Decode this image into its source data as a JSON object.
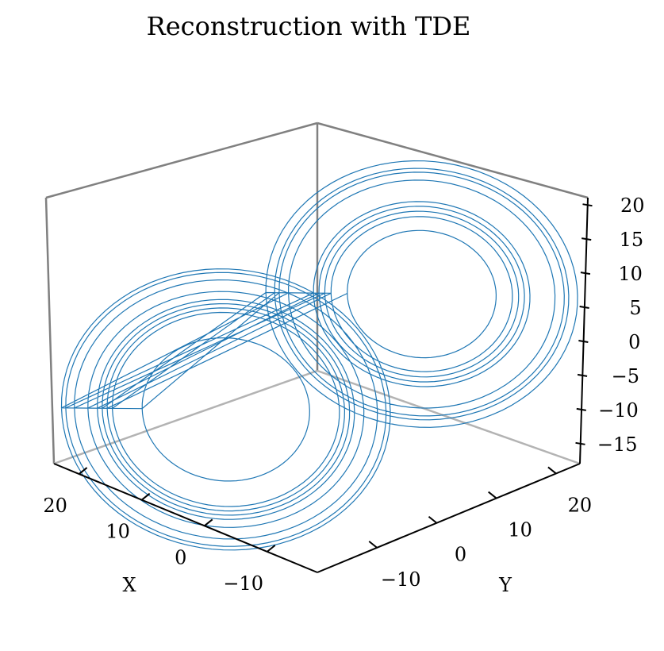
{
  "chart_data": {
    "type": "line",
    "projection": "3d",
    "title": "Reconstruction with TDE",
    "xlabel": "X",
    "ylabel": "Y",
    "zlabel": "",
    "xlim": [
      -18,
      24
    ],
    "ylim": [
      -20,
      24
    ],
    "zlim": [
      -17,
      22
    ],
    "xticks": [
      20,
      10,
      0,
      -10
    ],
    "xtick_labels": [
      "20",
      "10",
      "0",
      "−10"
    ],
    "yticks": [
      -10,
      0,
      10,
      20
    ],
    "ytick_labels": [
      "−10",
      "0",
      "10",
      "20"
    ],
    "zticks": [
      20,
      15,
      10,
      5,
      0,
      -5,
      -10,
      -15
    ],
    "ztick_labels": [
      "20",
      "15",
      "10",
      "5",
      "0",
      "−5",
      "−10",
      "−15"
    ],
    "series": [
      {
        "color": "#1f77b4",
        "description": "two-lobe trajectory",
        "lobe_centers": [
          [
            -8,
            8,
            8
          ],
          [
            8,
            -8,
            -8
          ]
        ],
        "lobe_radius_range": [
          3,
          19
        ],
        "loops": 18
      }
    ],
    "grid": false
  }
}
